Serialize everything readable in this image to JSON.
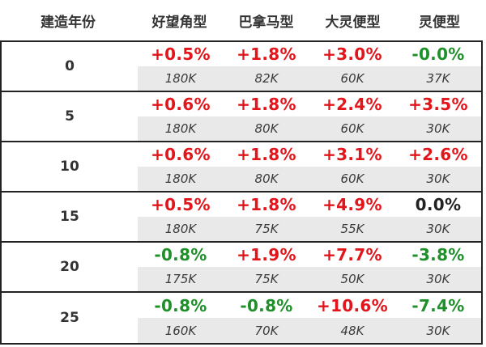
{
  "header": {
    "year": "建造年份",
    "cols": [
      "好望角型",
      "巴拿马型",
      "大灵便型",
      "灵便型"
    ]
  },
  "rows": [
    {
      "year": "0",
      "cells": [
        {
          "pct": "+0.5%",
          "count": "180K",
          "tone": "red"
        },
        {
          "pct": "+1.8%",
          "count": "82K",
          "tone": "red"
        },
        {
          "pct": "+3.0%",
          "count": "60K",
          "tone": "red"
        },
        {
          "pct": "-0.0%",
          "count": "37K",
          "tone": "green"
        }
      ]
    },
    {
      "year": "5",
      "cells": [
        {
          "pct": "+0.6%",
          "count": "180K",
          "tone": "red"
        },
        {
          "pct": "+1.8%",
          "count": "80K",
          "tone": "red"
        },
        {
          "pct": "+2.4%",
          "count": "60K",
          "tone": "red"
        },
        {
          "pct": "+3.5%",
          "count": "30K",
          "tone": "red"
        }
      ]
    },
    {
      "year": "10",
      "cells": [
        {
          "pct": "+0.6%",
          "count": "180K",
          "tone": "red"
        },
        {
          "pct": "+1.8%",
          "count": "80K",
          "tone": "red"
        },
        {
          "pct": "+3.1%",
          "count": "60K",
          "tone": "red"
        },
        {
          "pct": "+2.6%",
          "count": "30K",
          "tone": "red"
        }
      ]
    },
    {
      "year": "15",
      "cells": [
        {
          "pct": "+0.5%",
          "count": "180K",
          "tone": "red"
        },
        {
          "pct": "+1.8%",
          "count": "75K",
          "tone": "red"
        },
        {
          "pct": "+4.9%",
          "count": "55K",
          "tone": "red"
        },
        {
          "pct": "0.0%",
          "count": "30K",
          "tone": "black"
        }
      ]
    },
    {
      "year": "20",
      "cells": [
        {
          "pct": "-0.8%",
          "count": "175K",
          "tone": "green"
        },
        {
          "pct": "+1.9%",
          "count": "75K",
          "tone": "red"
        },
        {
          "pct": "+7.7%",
          "count": "50K",
          "tone": "red"
        },
        {
          "pct": "-3.8%",
          "count": "30K",
          "tone": "green"
        }
      ]
    },
    {
      "year": "25",
      "cells": [
        {
          "pct": "-0.8%",
          "count": "160K",
          "tone": "green"
        },
        {
          "pct": "-0.8%",
          "count": "70K",
          "tone": "green"
        },
        {
          "pct": "+10.6%",
          "count": "48K",
          "tone": "red"
        },
        {
          "pct": "-7.4%",
          "count": "30K",
          "tone": "green"
        }
      ]
    }
  ],
  "colors": {
    "positive": "#e2151b",
    "negative": "#1f8f2a",
    "neutral": "#222222",
    "count_background": "#e9e9e9"
  }
}
